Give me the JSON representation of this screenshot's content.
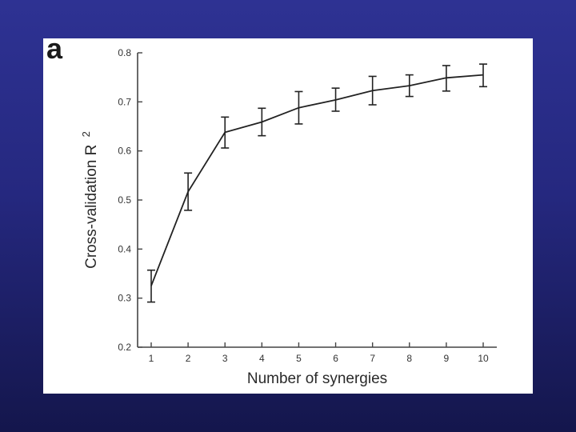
{
  "figure": {
    "panel_label": "a"
  },
  "chart_data": {
    "type": "line",
    "title": "",
    "xlabel": "Number of synergies",
    "ylabel": "Cross-validation R",
    "ylabel_superscript": "2",
    "xlim": [
      1,
      10
    ],
    "ylim": [
      0.2,
      0.8
    ],
    "x_ticks": [
      1,
      2,
      3,
      4,
      5,
      6,
      7,
      8,
      9,
      10
    ],
    "y_ticks": [
      "0.2",
      "0.3",
      "0.4",
      "0.5",
      "0.6",
      "0.7",
      "0.8"
    ],
    "grid": false,
    "series": [
      {
        "x": [
          1,
          2,
          3,
          4,
          5,
          6,
          7,
          8,
          9,
          10
        ],
        "values": [
          0.325,
          0.517,
          0.638,
          0.659,
          0.688,
          0.704,
          0.723,
          0.733,
          0.749,
          0.755
        ],
        "error_low": [
          0.292,
          0.479,
          0.606,
          0.631,
          0.655,
          0.681,
          0.694,
          0.711,
          0.722,
          0.731
        ],
        "error_high": [
          0.357,
          0.555,
          0.669,
          0.687,
          0.721,
          0.728,
          0.752,
          0.755,
          0.774,
          0.777
        ]
      }
    ],
    "line_color": "#222222"
  }
}
